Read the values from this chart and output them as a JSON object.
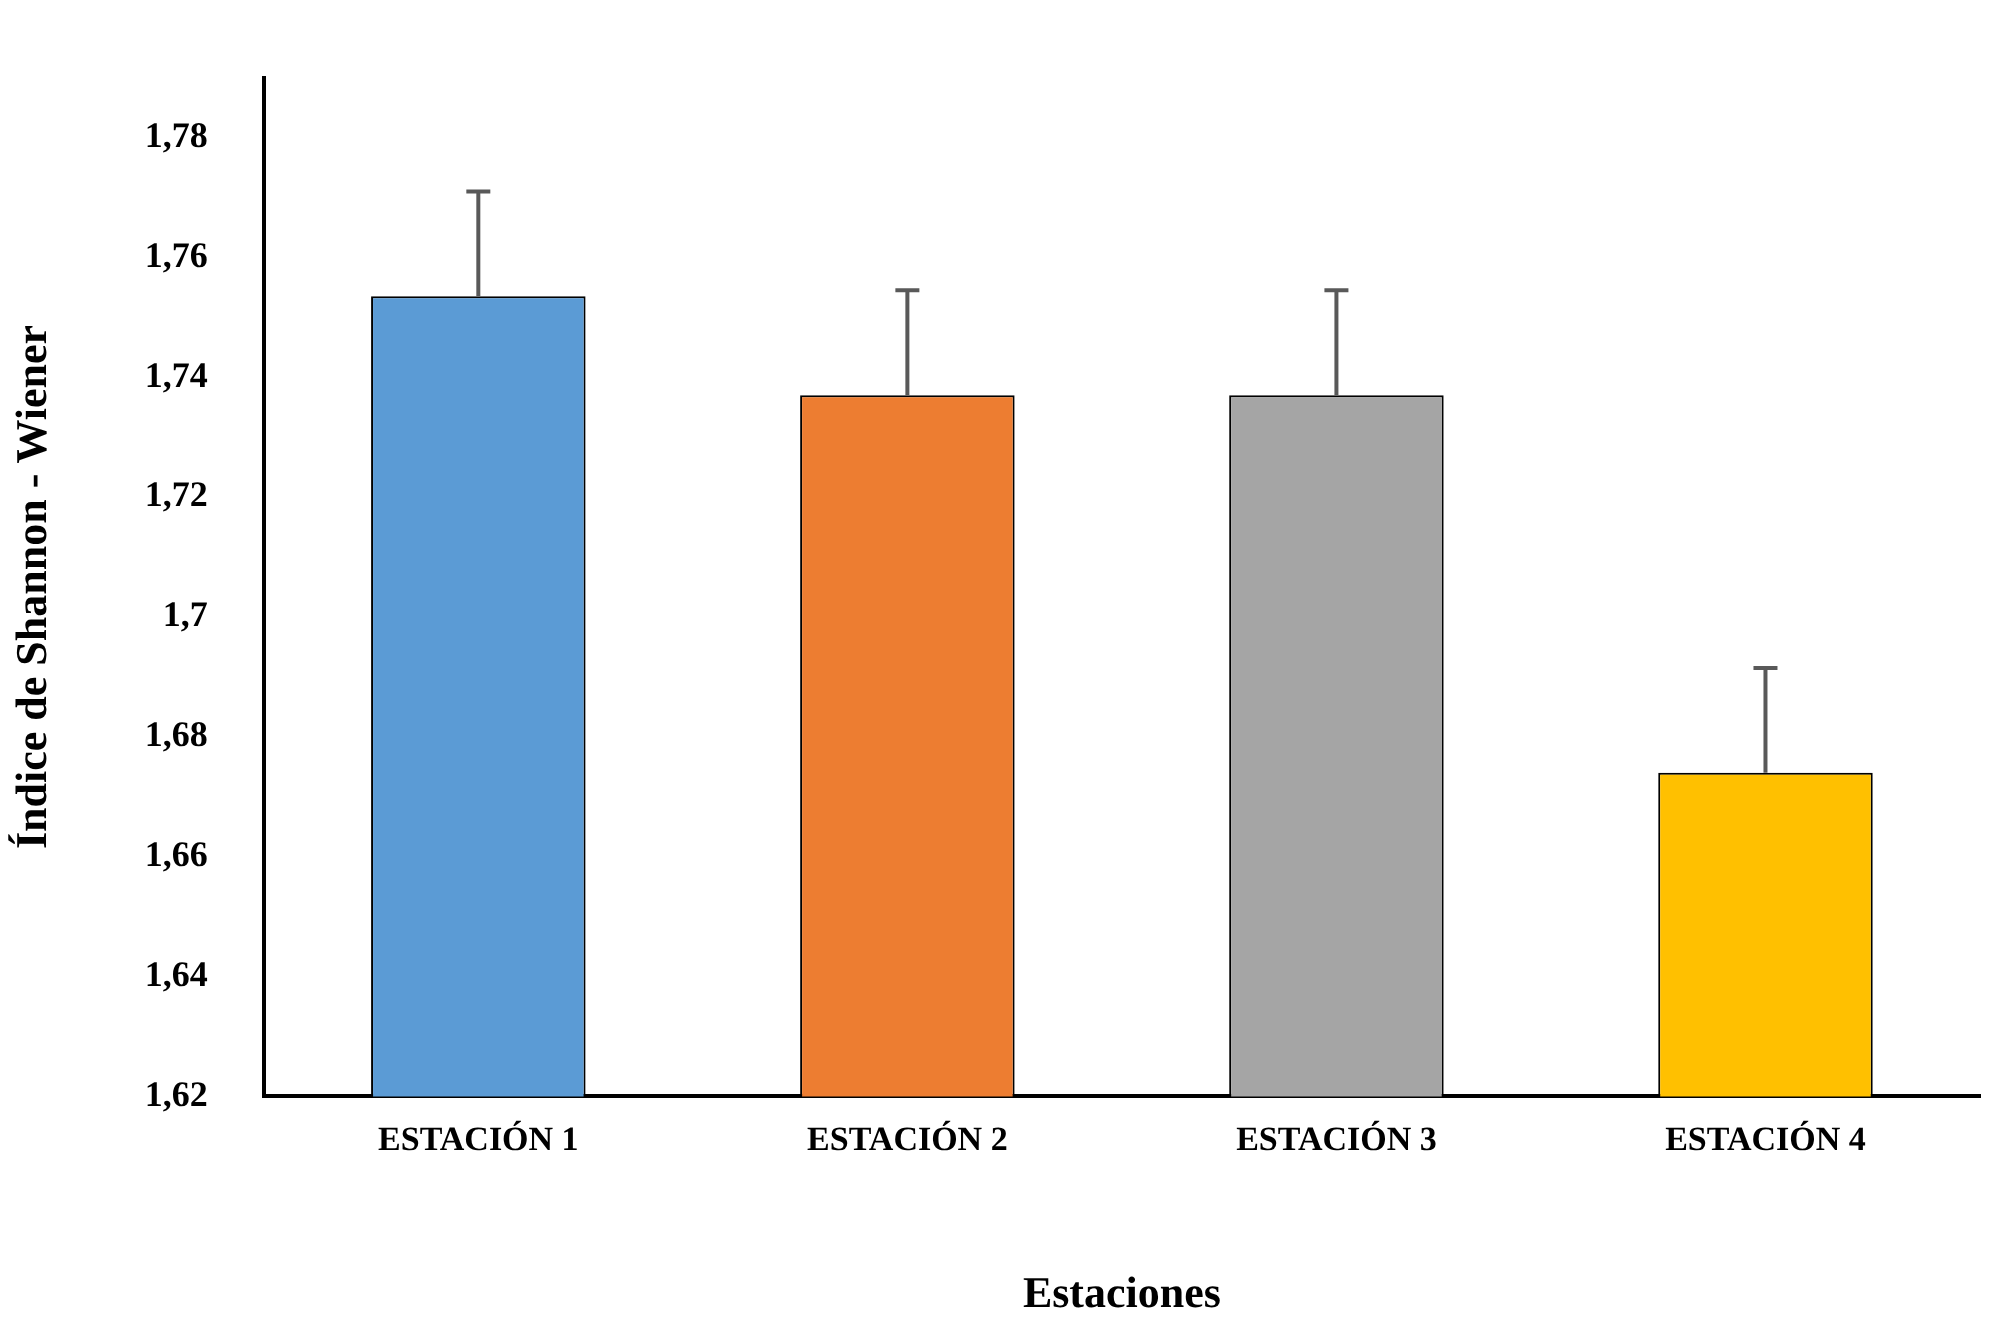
{
  "chart_data": {
    "type": "bar",
    "xlabel": "Estaciones",
    "ylabel": "Índice de Shannon - Wiener",
    "categories": [
      "ESTACIÓN 1",
      "ESTACIÓN 2",
      "ESTACIÓN 3",
      "ESTACIÓN 4"
    ],
    "values": [
      1.7535,
      1.737,
      1.737,
      1.674
    ],
    "colors": [
      "#5b9bd5",
      "#ed7d31",
      "#a5a5a5",
      "#ffc000"
    ],
    "errors": [
      [
        1.7535,
        1.771
      ],
      [
        1.737,
        1.7545
      ],
      [
        1.737,
        1.7545
      ],
      [
        1.674,
        1.6915
      ]
    ],
    "ylim": [
      1.62,
      1.79
    ],
    "yticks": [
      {
        "value": 1.62,
        "label": "1,62"
      },
      {
        "value": 1.64,
        "label": "1,64"
      },
      {
        "value": 1.66,
        "label": "1,66"
      },
      {
        "value": 1.68,
        "label": "1,68"
      },
      {
        "value": 1.7,
        "label": "1,7"
      },
      {
        "value": 1.72,
        "label": "1,72"
      },
      {
        "value": 1.74,
        "label": "1,74"
      },
      {
        "value": 1.76,
        "label": "1,76"
      },
      {
        "value": 1.78,
        "label": "1,78"
      }
    ],
    "grid": false,
    "legend": false
  }
}
